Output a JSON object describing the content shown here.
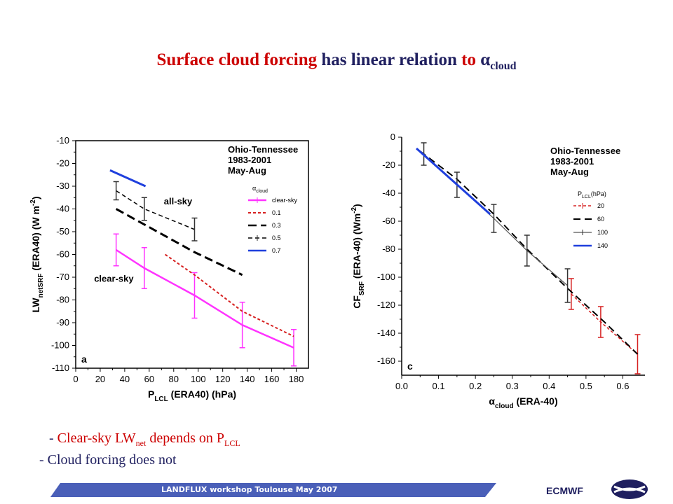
{
  "slide": {
    "title_parts": [
      {
        "text": "Surface cloud forcing ",
        "style": "red"
      },
      {
        "text": "has linear relation ",
        "style": "dark"
      },
      {
        "text": "to ",
        "style": "red"
      },
      {
        "text": "α",
        "style": "dark"
      },
      {
        "text": "cloud",
        "style": "dark",
        "sub": true
      }
    ],
    "bullet1": {
      "dash": "- ",
      "text": "Clear-sky LW",
      "sub1": "net",
      "mid": " depends on  P",
      "sub2": "LCL"
    },
    "bullet2": "- Cloud forcing does not",
    "footer": "LANDFLUX workshop Toulouse May 2007",
    "org": "ECMWF",
    "logo": "ecmwf-logo",
    "colors": {
      "title_red": "#cc0000",
      "title_dark": "#1f1f5f",
      "banner": "#4a5fb8"
    }
  },
  "chart_data": [
    {
      "type": "line",
      "panel_label": "a",
      "xlabel": {
        "main": "P",
        "sub": "LCL",
        "rest": " (ERA40) (hPa)"
      },
      "ylabel": {
        "main": "LW",
        "sub": "netSRF",
        "rest": " (ERA40) (W m",
        "sup": "-2",
        "end": ")"
      },
      "xlim": [
        0,
        190
      ],
      "ylim": [
        -110,
        -10
      ],
      "xticks": [
        0,
        20,
        40,
        60,
        80,
        100,
        120,
        140,
        160,
        180
      ],
      "yticks": [
        -10,
        -20,
        -30,
        -40,
        -50,
        -60,
        -70,
        -80,
        -90,
        -100,
        -110
      ],
      "inset": [
        "Ohio-Tennessee",
        "1983-2001",
        "May-Aug"
      ],
      "annotations": [
        "all-sky",
        "clear-sky"
      ],
      "legend_title": {
        "main": "α",
        "sub": "cloud"
      },
      "series": [
        {
          "name": "clear-sky",
          "color": "#ff33ff",
          "dash": "",
          "width": 2.5,
          "errorbars": true,
          "x": [
            33,
            56,
            97,
            136,
            178
          ],
          "y": [
            -58,
            -66,
            -78,
            -91,
            -101
          ],
          "err": [
            7,
            9,
            10,
            10,
            8
          ]
        },
        {
          "name": "0.1",
          "color": "#d62020",
          "dash": "4,3",
          "width": 2,
          "errorbars": false,
          "x": [
            73,
            97,
            136,
            178
          ],
          "y": [
            -60,
            -69,
            -85,
            -96
          ]
        },
        {
          "name": "0.3",
          "color": "#000000",
          "dash": "12,6",
          "width": 3,
          "errorbars": false,
          "x": [
            33,
            97,
            136
          ],
          "y": [
            -40,
            -59,
            -69
          ]
        },
        {
          "name": "0.5",
          "color": "#000000",
          "dash": "6,4",
          "width": 1.5,
          "errorbars": true,
          "x": [
            33,
            56,
            97
          ],
          "y": [
            -32,
            -40,
            -49
          ],
          "err": [
            4,
            5,
            5
          ]
        },
        {
          "name": "0.7",
          "color": "#1f3fdd",
          "dash": "",
          "width": 3,
          "errorbars": false,
          "x": [
            28,
            57
          ],
          "y": [
            -23,
            -30
          ]
        }
      ]
    },
    {
      "type": "line",
      "panel_label": "c",
      "xlabel": {
        "main": "α",
        "sub": "cloud",
        "rest": " (ERA-40)"
      },
      "ylabel": {
        "main": "CF",
        "sub": "SRF",
        "rest": " (ERA-40) (Wm",
        "sup": "-2",
        "end": ")"
      },
      "xlim": [
        0.0,
        0.66
      ],
      "ylim": [
        -170,
        0
      ],
      "xticks": [
        0.0,
        0.1,
        0.2,
        0.3,
        0.4,
        0.5,
        0.6
      ],
      "xtick_labels": [
        "0.0",
        "0.1",
        "0.2",
        "0.3",
        "0.4",
        "0.5",
        "0.6"
      ],
      "yticks": [
        0,
        -20,
        -40,
        -60,
        -80,
        -100,
        -120,
        -140,
        -160
      ],
      "inset": [
        "Ohio-Tennessee",
        "1983-2001",
        "May-Aug"
      ],
      "legend_title": {
        "main": "P",
        "sub": "LCL",
        "rest": "(hPa)"
      },
      "series": [
        {
          "name": "20",
          "color": "#d62020",
          "dash": "4,3",
          "width": 1.5,
          "errorbars": true,
          "x": [
            0.46,
            0.54,
            0.64
          ],
          "y": [
            -112,
            -132,
            -155
          ],
          "err": [
            11,
            11,
            14
          ]
        },
        {
          "name": "60",
          "color": "#000000",
          "dash": "10,6",
          "width": 2,
          "errorbars": false,
          "x": [
            0.05,
            0.15,
            0.25,
            0.34,
            0.45,
            0.55,
            0.64
          ],
          "y": [
            -10,
            -30,
            -55,
            -80,
            -108,
            -132,
            -155
          ]
        },
        {
          "name": "100",
          "color": "#555555",
          "dash": "",
          "width": 1.2,
          "errorbars": true,
          "x": [
            0.06,
            0.15,
            0.25,
            0.34,
            0.45
          ],
          "y": [
            -12,
            -34,
            -58,
            -81,
            -106
          ],
          "err": [
            8,
            9,
            10,
            11,
            12
          ]
        },
        {
          "name": "140",
          "color": "#1f3fdd",
          "dash": "",
          "width": 3,
          "errorbars": false,
          "x": [
            0.04,
            0.24
          ],
          "y": [
            -8,
            -55
          ]
        }
      ]
    }
  ]
}
